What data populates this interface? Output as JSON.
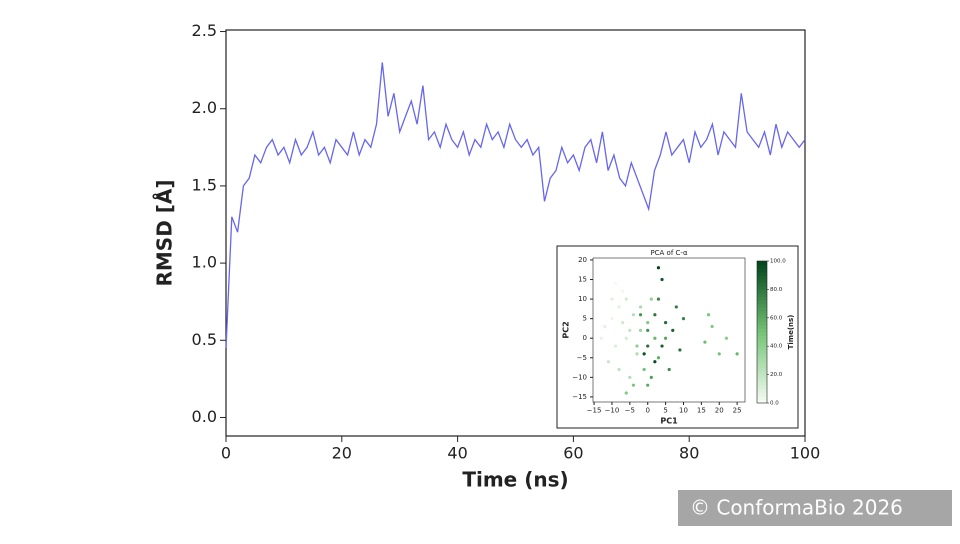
{
  "chart_data": [
    {
      "type": "line",
      "xlabel": "Time (ns)",
      "ylabel": "RMSD [Å]",
      "color": "#6666ee",
      "x": [
        0,
        1,
        2,
        3,
        4,
        5,
        6,
        7,
        8,
        9,
        10,
        11,
        12,
        13,
        14,
        15,
        16,
        17,
        18,
        19,
        20,
        21,
        22,
        23,
        24,
        25,
        26,
        27,
        28,
        29,
        30,
        31,
        32,
        33,
        34,
        35,
        36,
        37,
        38,
        39,
        40,
        41,
        42,
        43,
        44,
        45,
        46,
        47,
        48,
        49,
        50,
        51,
        52,
        53,
        54,
        55,
        56,
        57,
        58,
        59,
        60,
        61,
        62,
        63,
        64,
        65,
        66,
        67,
        68,
        69,
        70,
        71,
        72,
        73,
        74,
        75,
        76,
        77,
        78,
        79,
        80,
        81,
        82,
        83,
        84,
        85,
        86,
        87,
        88,
        89,
        90,
        91,
        92,
        93,
        94,
        95,
        96,
        97,
        98,
        99,
        100
      ],
      "values": [
        0.45,
        1.3,
        1.2,
        1.5,
        1.55,
        1.7,
        1.65,
        1.75,
        1.8,
        1.7,
        1.75,
        1.65,
        1.8,
        1.7,
        1.75,
        1.85,
        1.7,
        1.75,
        1.65,
        1.8,
        1.75,
        1.7,
        1.85,
        1.7,
        1.8,
        1.75,
        1.9,
        2.3,
        1.95,
        2.1,
        1.85,
        1.95,
        2.05,
        1.9,
        2.15,
        1.8,
        1.85,
        1.75,
        1.9,
        1.8,
        1.75,
        1.85,
        1.7,
        1.8,
        1.75,
        1.9,
        1.8,
        1.85,
        1.75,
        1.9,
        1.8,
        1.75,
        1.8,
        1.7,
        1.75,
        1.4,
        1.55,
        1.6,
        1.75,
        1.65,
        1.7,
        1.6,
        1.75,
        1.8,
        1.65,
        1.85,
        1.6,
        1.7,
        1.55,
        1.5,
        1.65,
        1.55,
        1.45,
        1.35,
        1.6,
        1.7,
        1.85,
        1.7,
        1.75,
        1.8,
        1.65,
        1.85,
        1.75,
        1.8,
        1.9,
        1.7,
        1.85,
        1.8,
        1.75,
        2.1,
        1.85,
        1.8,
        1.75,
        1.85,
        1.7,
        1.9,
        1.75,
        1.85,
        1.8,
        1.75,
        1.8
      ],
      "xlim": [
        0,
        100
      ],
      "ylim": [
        -0.12,
        2.51
      ],
      "xticks": [
        0,
        20,
        40,
        60,
        80,
        100
      ],
      "yticks": [
        {
          "value": 0,
          "label": "0.0"
        },
        0.5,
        {
          "value": 1,
          "label": "1.0"
        },
        1.5,
        {
          "value": 2,
          "label": "2.0"
        },
        2.5
      ]
    },
    {
      "type": "scatter",
      "title": "PCA of C-α",
      "xlabel": "PC1",
      "ylabel": "PC2",
      "colorbar_label": "Time(ns)",
      "cmap_colors": [
        "#f7fcf5",
        "#74c476",
        "#00441b"
      ],
      "clim": [
        0,
        100
      ],
      "x": [
        -10,
        -8,
        -12,
        -6,
        -9,
        -5,
        -11,
        -7,
        -4,
        -13,
        -8,
        -3,
        -6,
        -10,
        -5,
        -2,
        -9,
        -7,
        -3,
        0,
        -1,
        2,
        -4,
        1,
        3,
        -2,
        16,
        18,
        20,
        22,
        25,
        17,
        -6,
        0,
        0,
        2,
        4,
        3,
        5,
        -1,
        6,
        7,
        1,
        8,
        4,
        2,
        -2,
        9,
        3,
        5,
        10,
        0
      ],
      "y": [
        5,
        8,
        3,
        10,
        -2,
        2,
        -6,
        12,
        6,
        0,
        -8,
        -4,
        0,
        10,
        -10,
        8,
        14,
        4,
        -2,
        4,
        -8,
        0,
        -12,
        10,
        -5,
        2,
        -1,
        3,
        -4,
        0,
        -4,
        6,
        -14,
        -12,
        2,
        6,
        -2,
        10,
        4,
        -4,
        -8,
        2,
        -10,
        8,
        15,
        -6,
        6,
        -3,
        18,
        0,
        5,
        -2
      ],
      "c": [
        5,
        10,
        8,
        15,
        12,
        20,
        18,
        3,
        25,
        6,
        22,
        28,
        14,
        9,
        26,
        30,
        2,
        16,
        40,
        45,
        50,
        55,
        48,
        38,
        58,
        35,
        52,
        45,
        50,
        42,
        55,
        48,
        45,
        60,
        70,
        80,
        90,
        75,
        85,
        95,
        72,
        88,
        65,
        78,
        92,
        98,
        68,
        82,
        100,
        62,
        76,
        84
      ],
      "xlim": [
        -15.3,
        27.2
      ],
      "ylim": [
        -16.3,
        20.5
      ],
      "xticks": [
        {
          "value": -15,
          "label": "−15"
        },
        {
          "value": -10,
          "label": "−10"
        },
        {
          "value": -5,
          "label": "−5"
        },
        0,
        5,
        10,
        15,
        20,
        25
      ],
      "yticks": [
        {
          "value": -15,
          "label": "−15"
        },
        {
          "value": -10,
          "label": "−10"
        },
        {
          "value": -5,
          "label": "−5"
        },
        0,
        5,
        10,
        15,
        20
      ],
      "cticks": [
        {
          "value": 0,
          "label": "0.0"
        },
        {
          "value": 20,
          "label": "20.0"
        },
        {
          "value": 40,
          "label": "40.0"
        },
        {
          "value": 60,
          "label": "60.0"
        },
        {
          "value": 80,
          "label": "80.0"
        },
        {
          "value": 100,
          "label": "100.0"
        }
      ]
    }
  ],
  "watermark": "© ConformaBio 2026"
}
